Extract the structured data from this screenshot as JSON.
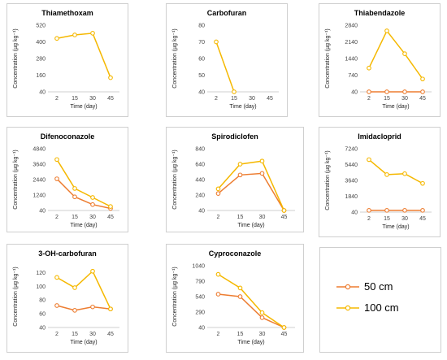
{
  "legend": {
    "series": [
      {
        "name": "50 cm",
        "color": "#ed7d31"
      },
      {
        "name": "100 cm",
        "color": "#f5b800"
      }
    ]
  },
  "chart_data": [
    {
      "type": "line",
      "title": "Thiamethoxam",
      "xlabel": "Time (day)",
      "ylabel": "Concentration (µg kg⁻¹)",
      "categories": [
        "2",
        "15",
        "30",
        "45"
      ],
      "yticks": [
        40,
        160,
        280,
        400,
        520
      ],
      "ylim": [
        40,
        520
      ],
      "series": [
        {
          "name": "50 cm",
          "values": [
            null,
            null,
            null,
            null
          ]
        },
        {
          "name": "100 cm",
          "values": [
            425,
            450,
            462,
            142
          ]
        }
      ]
    },
    {
      "type": "line",
      "title": "Carbofuran",
      "xlabel": "Time (day)",
      "ylabel": "Concentration (µg kg⁻¹)",
      "categories": [
        "2",
        "15",
        "30",
        "45"
      ],
      "yticks": [
        40,
        50,
        60,
        70,
        80
      ],
      "ylim": [
        40,
        80
      ],
      "series": [
        {
          "name": "50 cm",
          "values": [
            null,
            null,
            null,
            null
          ]
        },
        {
          "name": "100 cm",
          "values": [
            70,
            40,
            null,
            null
          ]
        }
      ]
    },
    {
      "type": "line",
      "title": "Thiabendazole",
      "xlabel": "Time (day)",
      "ylabel": "Concentration (µg kg⁻¹)",
      "categories": [
        "2",
        "15",
        "30",
        "45"
      ],
      "yticks": [
        40,
        740,
        1440,
        2140,
        2840
      ],
      "ylim": [
        40,
        2840
      ],
      "series": [
        {
          "name": "50 cm",
          "values": [
            40,
            40,
            40,
            40
          ]
        },
        {
          "name": "100 cm",
          "values": [
            1040,
            2600,
            1640,
            580
          ]
        }
      ]
    },
    {
      "type": "line",
      "title": "Difenoconazole",
      "xlabel": "Time (day)",
      "ylabel": "Concentration (µg kg⁻¹)",
      "categories": [
        "2",
        "15",
        "30",
        "45"
      ],
      "yticks": [
        40,
        1240,
        2440,
        3640,
        4840
      ],
      "ylim": [
        40,
        4840
      ],
      "series": [
        {
          "name": "50 cm",
          "values": [
            2500,
            1100,
            500,
            200
          ]
        },
        {
          "name": "100 cm",
          "values": [
            4000,
            1750,
            1050,
            350
          ]
        }
      ]
    },
    {
      "type": "line",
      "title": "Spirodiclofen",
      "xlabel": "Time (day)",
      "ylabel": "Concentration (µg kg⁻¹)",
      "categories": [
        "2",
        "15",
        "30",
        "45"
      ],
      "yticks": [
        40,
        240,
        440,
        640,
        840
      ],
      "ylim": [
        40,
        840
      ],
      "series": [
        {
          "name": "50 cm",
          "values": [
            260,
            500,
            520,
            40
          ]
        },
        {
          "name": "100 cm",
          "values": [
            320,
            640,
            680,
            40
          ]
        }
      ]
    },
    {
      "type": "line",
      "title": "Imidacloprid",
      "xlabel": "Time (day)",
      "ylabel": "Concentration (µg kg⁻¹)",
      "categories": [
        "2",
        "15",
        "30",
        "45"
      ],
      "yticks": [
        40,
        1840,
        3640,
        5440,
        7240
      ],
      "ylim": [
        40,
        7240
      ],
      "series": [
        {
          "name": "50 cm",
          "values": [
            240,
            240,
            240,
            240
          ]
        },
        {
          "name": "100 cm",
          "values": [
            6000,
            4300,
            4400,
            3300
          ]
        }
      ]
    },
    {
      "type": "line",
      "title": "3-OH-carbofuran",
      "xlabel": "Time (day)",
      "ylabel": "Concentration (µg kg⁻¹)",
      "categories": [
        "2",
        "15",
        "30",
        "45"
      ],
      "yticks": [
        40,
        60,
        80,
        100,
        120
      ],
      "ylim": [
        40,
        130
      ],
      "series": [
        {
          "name": "50 cm",
          "values": [
            72,
            65,
            70,
            67
          ]
        },
        {
          "name": "100 cm",
          "values": [
            113,
            98,
            122,
            67
          ]
        }
      ]
    },
    {
      "type": "line",
      "title": "Cyproconazole",
      "xlabel": "Time (day)",
      "ylabel": "Concentration (µg kg⁻¹)",
      "categories": [
        "2",
        "15",
        "30",
        "45"
      ],
      "yticks": [
        40,
        290,
        540,
        790,
        1040
      ],
      "ylim": [
        40,
        1040
      ],
      "series": [
        {
          "name": "50 cm",
          "values": [
            580,
            540,
            200,
            40
          ]
        },
        {
          "name": "100 cm",
          "values": [
            900,
            680,
            280,
            40
          ]
        }
      ]
    }
  ]
}
